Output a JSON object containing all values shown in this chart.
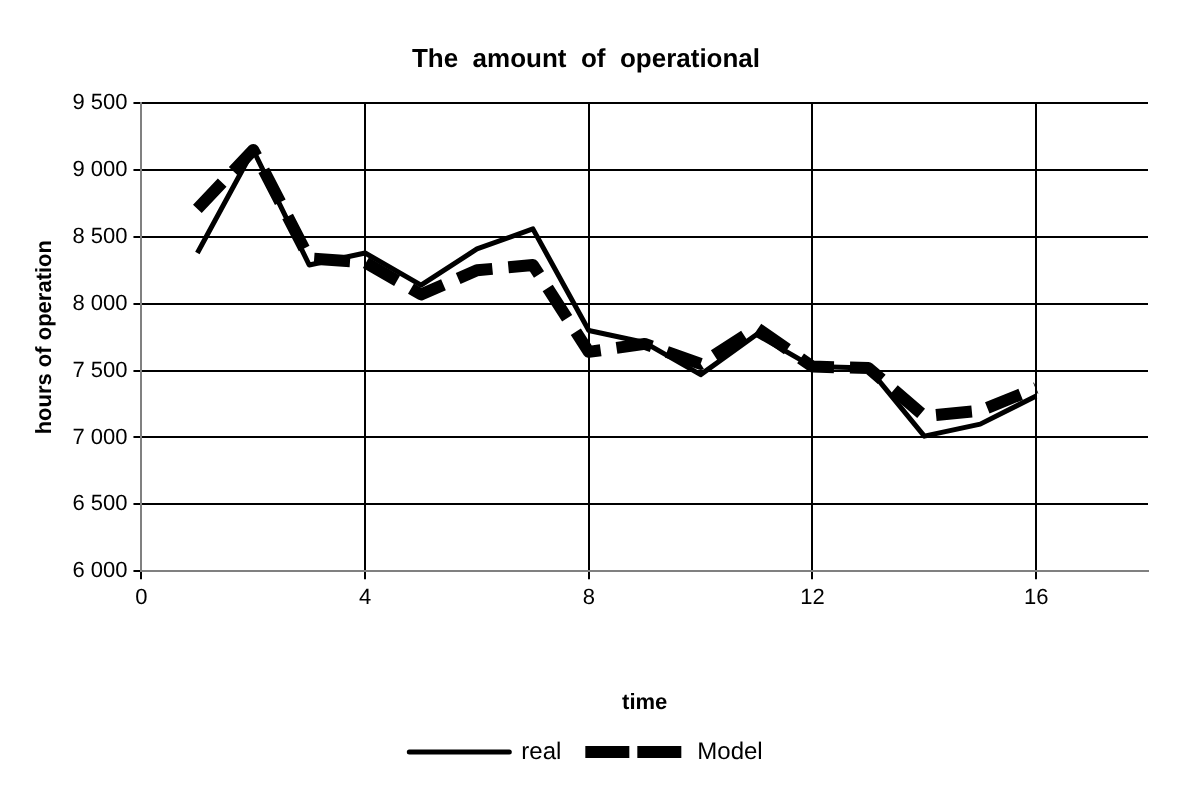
{
  "chart_data": {
    "type": "line",
    "title": "The  amount  of  operational",
    "xlabel": "time",
    "ylabel": "hours of operation",
    "x": [
      1,
      2,
      3,
      4,
      5,
      6,
      7,
      8,
      9,
      10,
      11,
      12,
      13,
      14,
      15,
      16
    ],
    "series": [
      {
        "name": "real",
        "color": "#000000",
        "line_style": "solid",
        "values": [
          8380,
          9150,
          8290,
          8380,
          8140,
          8410,
          8560,
          7800,
          7710,
          7470,
          7770,
          7530,
          7520,
          7010,
          7100,
          7310
        ]
      },
      {
        "name": "Model",
        "color": "#000000",
        "line_style": "dashed",
        "values": [
          8710,
          9150,
          8340,
          8310,
          8070,
          8250,
          8290,
          7640,
          7700,
          7550,
          7820,
          7530,
          7520,
          7160,
          7200,
          7370
        ]
      }
    ],
    "xlim": [
      0,
      18
    ],
    "xticks": [
      0,
      4,
      8,
      12,
      16
    ],
    "ylim": [
      6000,
      9500
    ],
    "yticks": [
      {
        "value": 6000,
        "label": "6 000"
      },
      {
        "value": 6500,
        "label": "6 500"
      },
      {
        "value": 7000,
        "label": "7 000"
      },
      {
        "value": 7500,
        "label": "7 500"
      },
      {
        "value": 8000,
        "label": "8 000"
      },
      {
        "value": 8500,
        "label": "8 500"
      },
      {
        "value": 9000,
        "label": "9 000"
      },
      {
        "value": 9500,
        "label": "9 500"
      }
    ],
    "grid": true,
    "legend": "bottom",
    "marker": "none"
  }
}
